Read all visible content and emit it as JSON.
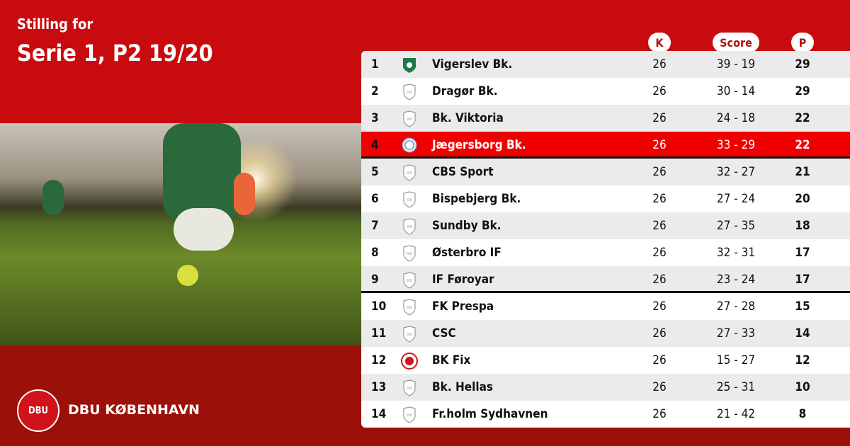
{
  "header": {
    "subtitle": "Stilling for",
    "title": "Serie 1, P2 19/20"
  },
  "brand": {
    "name": "DBU KØBENHAVN",
    "logo_text": "DBU"
  },
  "columns": {
    "k": "K",
    "score": "Score",
    "p": "P"
  },
  "colors": {
    "top": "#c80b0e",
    "bottom": "#9c100a",
    "highlight": "#f00000",
    "row_alt": "#ebebeb"
  },
  "rows": [
    {
      "rank": "1",
      "team": "Vigerslev Bk.",
      "k": "26",
      "score": "39 - 19",
      "p": "29",
      "crest": "green-shield-icon"
    },
    {
      "rank": "2",
      "team": "Dragør Bk.",
      "k": "26",
      "score": "30 - 14",
      "p": "29",
      "crest": "placeholder-shield-icon"
    },
    {
      "rank": "3",
      "team": "Bk. Viktoria",
      "k": "26",
      "score": "24 - 18",
      "p": "22",
      "crest": "placeholder-shield-icon"
    },
    {
      "rank": "4",
      "team": "Jægersborg Bk.",
      "k": "26",
      "score": "33 - 29",
      "p": "22",
      "crest": "blue-crest-icon",
      "highlighted": true
    },
    {
      "rank": "5",
      "team": "CBS Sport",
      "k": "26",
      "score": "32 - 27",
      "p": "21",
      "crest": "placeholder-shield-icon"
    },
    {
      "rank": "6",
      "team": "Bispebjerg Bk.",
      "k": "26",
      "score": "27 - 24",
      "p": "20",
      "crest": "placeholder-shield-icon"
    },
    {
      "rank": "7",
      "team": "Sundby Bk.",
      "k": "26",
      "score": "27 - 35",
      "p": "18",
      "crest": "placeholder-shield-icon"
    },
    {
      "rank": "8",
      "team": "Østerbro IF",
      "k": "26",
      "score": "32 - 31",
      "p": "17",
      "crest": "placeholder-shield-icon"
    },
    {
      "rank": "9",
      "team": "IF Føroyar",
      "k": "26",
      "score": "23 - 24",
      "p": "17",
      "crest": "placeholder-shield-icon"
    },
    {
      "rank": "10",
      "team": "FK Prespa",
      "k": "26",
      "score": "27 - 28",
      "p": "15",
      "crest": "placeholder-shield-icon"
    },
    {
      "rank": "11",
      "team": "CSC",
      "k": "26",
      "score": "27 - 33",
      "p": "14",
      "crest": "placeholder-shield-icon"
    },
    {
      "rank": "12",
      "team": "BK Fix",
      "k": "26",
      "score": "15 - 27",
      "p": "12",
      "crest": "red-round-crest-icon"
    },
    {
      "rank": "13",
      "team": "Bk. Hellas",
      "k": "26",
      "score": "25 - 31",
      "p": "10",
      "crest": "placeholder-shield-icon"
    },
    {
      "rank": "14",
      "team": "Fr.holm Sydhavnen",
      "k": "26",
      "score": "21 - 42",
      "p": "8",
      "crest": "placeholder-shield-icon"
    }
  ]
}
